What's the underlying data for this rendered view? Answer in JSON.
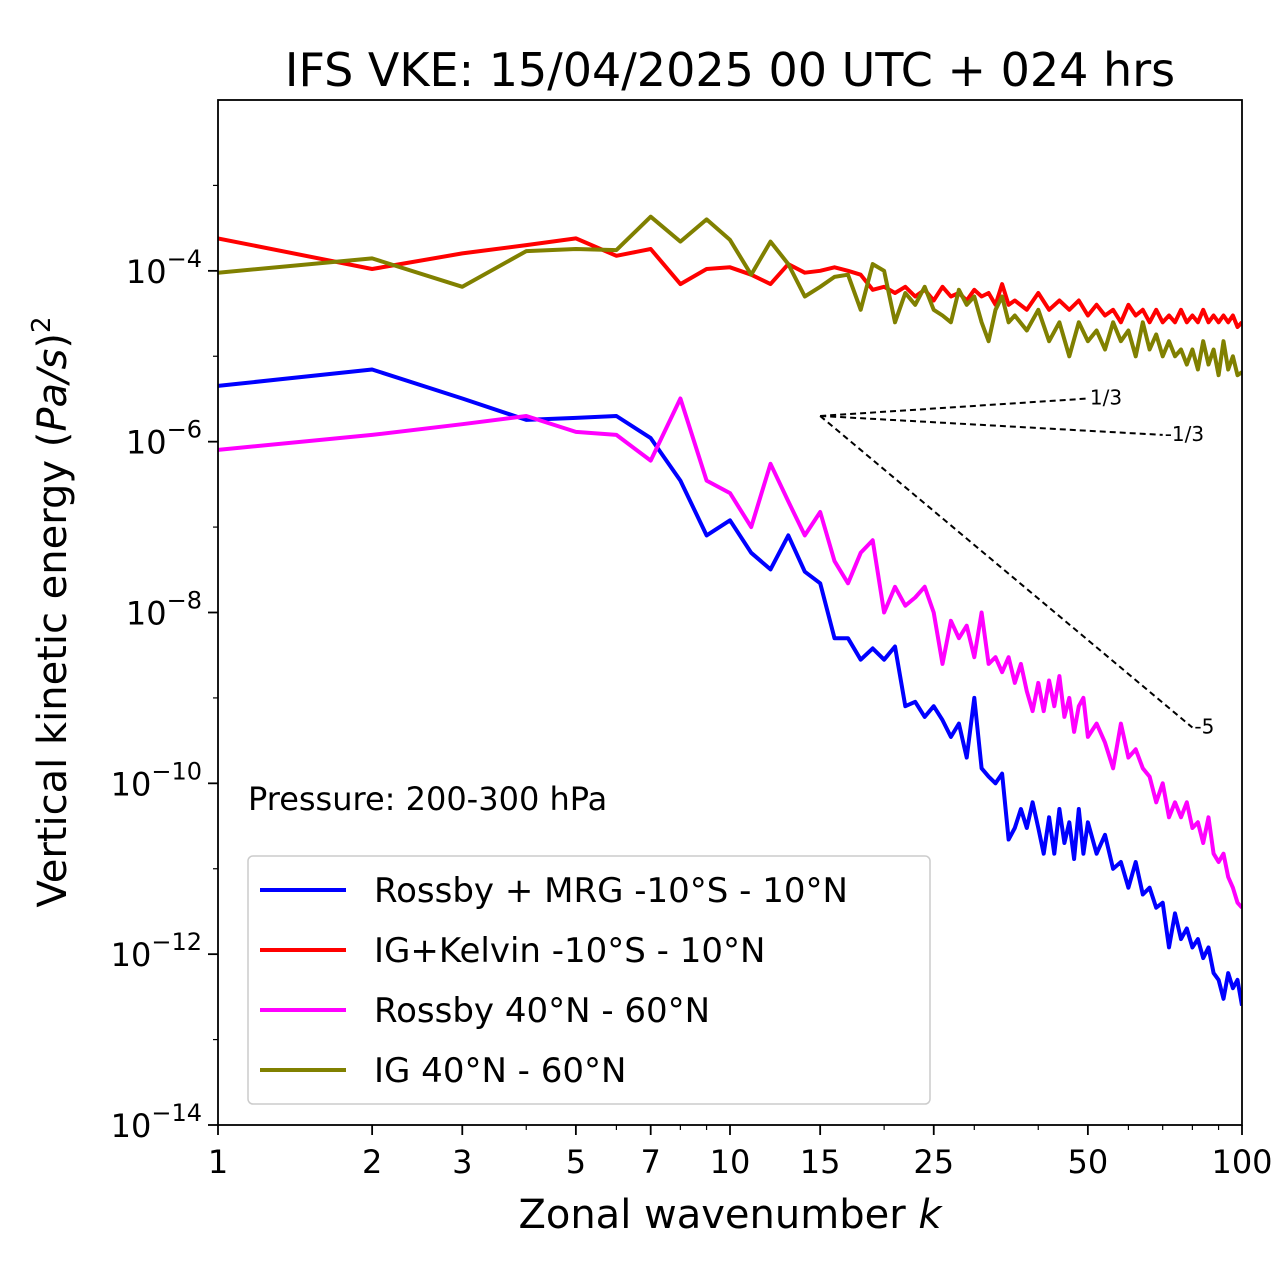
{
  "chart_data": {
    "type": "line",
    "title": "IFS VKE: 15/04/2025 00 UTC + 024 hrs",
    "xlabel": "Zonal wavenumber k",
    "xlabel_main": "Zonal wavenumber ",
    "xlabel_var": "k",
    "ylabel": "Vertical kinetic energy (Pa/s)^2",
    "ylabel_main": "Vertical kinetic energy (",
    "ylabel_var": "Pa/s",
    "ylabel_close": ")",
    "ylabel_exp": "2",
    "xscale": "log",
    "yscale": "log",
    "xlim": [
      1,
      100
    ],
    "ylim": [
      1e-14,
      0.01
    ],
    "x_ticks": [
      1,
      2,
      3,
      5,
      7,
      10,
      15,
      25,
      50,
      100
    ],
    "x_tick_labels": [
      "1",
      "2",
      "3",
      "5",
      "7",
      "10",
      "15",
      "25",
      "50",
      "100"
    ],
    "y_ticks": [
      {
        "value": 0.0001,
        "base": "10",
        "exp": "−4"
      },
      {
        "value": 1e-06,
        "base": "10",
        "exp": "−6"
      },
      {
        "value": 1e-08,
        "base": "10",
        "exp": "−8"
      },
      {
        "value": 1e-10,
        "base": "10",
        "exp": "−10"
      },
      {
        "value": 1e-12,
        "base": "10",
        "exp": "−12"
      },
      {
        "value": 1e-14,
        "base": "10",
        "exp": "−14"
      }
    ],
    "grid": false,
    "annotation": "Pressure: 200-300 hPa",
    "legend_placement": "lower-left",
    "series": [
      {
        "name": "Rossby + MRG -10°S - 10°N",
        "color": "#0000ff",
        "points": [
          [
            1,
            4.5e-06
          ],
          [
            2,
            7e-06
          ],
          [
            3,
            3.2e-06
          ],
          [
            4,
            1.8e-06
          ],
          [
            5,
            1.9e-06
          ],
          [
            6,
            2e-06
          ],
          [
            7,
            1.1e-06
          ],
          [
            8,
            3.5e-07
          ],
          [
            9,
            8e-08
          ],
          [
            10,
            1.2e-07
          ],
          [
            11,
            5e-08
          ],
          [
            12,
            3.2e-08
          ],
          [
            13,
            8e-08
          ],
          [
            14,
            3e-08
          ],
          [
            15,
            2.2e-08
          ],
          [
            16,
            5e-09
          ],
          [
            17,
            5e-09
          ],
          [
            18,
            2.8e-09
          ],
          [
            19,
            3.8e-09
          ],
          [
            20,
            2.8e-09
          ],
          [
            21,
            4e-09
          ],
          [
            22,
            8e-10
          ],
          [
            23,
            9e-10
          ],
          [
            24,
            6e-10
          ],
          [
            25,
            8e-10
          ],
          [
            26,
            5.5e-10
          ],
          [
            27,
            3.5e-10
          ],
          [
            28,
            5e-10
          ],
          [
            29,
            2e-10
          ],
          [
            30,
            1e-09
          ],
          [
            31,
            1.5e-10
          ],
          [
            32,
            1.2e-10
          ],
          [
            33,
            1e-10
          ],
          [
            34,
            1.3e-10
          ],
          [
            35,
            2.2e-11
          ],
          [
            36,
            3e-11
          ],
          [
            37,
            5e-11
          ],
          [
            38,
            3e-11
          ],
          [
            39,
            6e-11
          ],
          [
            40,
            3e-11
          ],
          [
            41,
            1.5e-11
          ],
          [
            42,
            4e-11
          ],
          [
            43,
            1.5e-11
          ],
          [
            44,
            5e-11
          ],
          [
            45,
            2e-11
          ],
          [
            46,
            3.5e-11
          ],
          [
            47,
            1.3e-11
          ],
          [
            48,
            5e-11
          ],
          [
            49,
            1.5e-11
          ],
          [
            50,
            3.5e-11
          ],
          [
            52,
            1.5e-11
          ],
          [
            54,
            2.5e-11
          ],
          [
            56,
            1e-11
          ],
          [
            58,
            1.2e-11
          ],
          [
            60,
            6e-12
          ],
          [
            62,
            1.2e-11
          ],
          [
            64,
            5e-12
          ],
          [
            66,
            6e-12
          ],
          [
            68,
            3.5e-12
          ],
          [
            70,
            4e-12
          ],
          [
            72,
            1.2e-12
          ],
          [
            74,
            3e-12
          ],
          [
            76,
            1.5e-12
          ],
          [
            78,
            2e-12
          ],
          [
            80,
            1.2e-12
          ],
          [
            82,
            1.5e-12
          ],
          [
            84,
            9e-13
          ],
          [
            86,
            1.2e-12
          ],
          [
            88,
            6e-13
          ],
          [
            90,
            5e-13
          ],
          [
            92,
            3e-13
          ],
          [
            94,
            6e-13
          ],
          [
            96,
            4e-13
          ],
          [
            98,
            5e-13
          ],
          [
            100,
            2.5e-13
          ]
        ]
      },
      {
        "name": "IG+Kelvin -10°S - 10°N",
        "color": "#ff0000",
        "points": [
          [
            1,
            0.00024
          ],
          [
            2,
            0.000105
          ],
          [
            3,
            0.00016
          ],
          [
            4,
            0.0002
          ],
          [
            5,
            0.00024
          ],
          [
            6,
            0.00015
          ],
          [
            7,
            0.00018
          ],
          [
            8,
            7e-05
          ],
          [
            9,
            0.000105
          ],
          [
            10,
            0.00011
          ],
          [
            11,
            9e-05
          ],
          [
            12,
            7e-05
          ],
          [
            13,
            0.00012
          ],
          [
            14,
            9.5e-05
          ],
          [
            15,
            0.0001
          ],
          [
            16,
            0.00011
          ],
          [
            17,
            0.0001
          ],
          [
            18,
            9e-05
          ],
          [
            19,
            6e-05
          ],
          [
            20,
            6.5e-05
          ],
          [
            21,
            5.5e-05
          ],
          [
            22,
            6.5e-05
          ],
          [
            23,
            5e-05
          ],
          [
            24,
            6e-05
          ],
          [
            25,
            4.5e-05
          ],
          [
            26,
            6.5e-05
          ],
          [
            27,
            5e-05
          ],
          [
            28,
            5.5e-05
          ],
          [
            29,
            4.5e-05
          ],
          [
            30,
            6e-05
          ],
          [
            31,
            5e-05
          ],
          [
            32,
            5.5e-05
          ],
          [
            33,
            4e-05
          ],
          [
            34,
            7e-05
          ],
          [
            35,
            4e-05
          ],
          [
            36,
            4.5e-05
          ],
          [
            38,
            3.5e-05
          ],
          [
            40,
            5.5e-05
          ],
          [
            42,
            3.5e-05
          ],
          [
            44,
            4.5e-05
          ],
          [
            46,
            3.5e-05
          ],
          [
            48,
            4.5e-05
          ],
          [
            50,
            3e-05
          ],
          [
            52,
            4e-05
          ],
          [
            54,
            3e-05
          ],
          [
            56,
            3.5e-05
          ],
          [
            58,
            2.5e-05
          ],
          [
            60,
            4e-05
          ],
          [
            62,
            3e-05
          ],
          [
            64,
            3.5e-05
          ],
          [
            66,
            2.5e-05
          ],
          [
            68,
            3.5e-05
          ],
          [
            70,
            2.5e-05
          ],
          [
            72,
            3e-05
          ],
          [
            74,
            2.5e-05
          ],
          [
            76,
            3.5e-05
          ],
          [
            78,
            2.5e-05
          ],
          [
            80,
            3e-05
          ],
          [
            82,
            2.5e-05
          ],
          [
            84,
            3.5e-05
          ],
          [
            86,
            2.5e-05
          ],
          [
            88,
            3e-05
          ],
          [
            90,
            2.5e-05
          ],
          [
            92,
            3e-05
          ],
          [
            94,
            2.5e-05
          ],
          [
            96,
            3e-05
          ],
          [
            98,
            2.2e-05
          ],
          [
            100,
            2.5e-05
          ]
        ]
      },
      {
        "name": "Rossby 40°N - 60°N",
        "color": "#ff00ff",
        "points": [
          [
            1,
            8e-07
          ],
          [
            2,
            1.2e-06
          ],
          [
            3,
            1.6e-06
          ],
          [
            4,
            2e-06
          ],
          [
            5,
            1.3e-06
          ],
          [
            6,
            1.2e-06
          ],
          [
            7,
            6e-07
          ],
          [
            8,
            3.2e-06
          ],
          [
            9,
            3.5e-07
          ],
          [
            10,
            2.5e-07
          ],
          [
            11,
            1e-07
          ],
          [
            12,
            5.5e-07
          ],
          [
            13,
            2e-07
          ],
          [
            14,
            8e-08
          ],
          [
            15,
            1.5e-07
          ],
          [
            16,
            4e-08
          ],
          [
            17,
            2.2e-08
          ],
          [
            18,
            5e-08
          ],
          [
            19,
            7e-08
          ],
          [
            20,
            1e-08
          ],
          [
            21,
            2e-08
          ],
          [
            22,
            1.2e-08
          ],
          [
            23,
            1.5e-08
          ],
          [
            24,
            2e-08
          ],
          [
            25,
            1e-08
          ],
          [
            26,
            2.5e-09
          ],
          [
            27,
            8e-09
          ],
          [
            28,
            5e-09
          ],
          [
            29,
            7e-09
          ],
          [
            30,
            3e-09
          ],
          [
            31,
            1e-08
          ],
          [
            32,
            2.5e-09
          ],
          [
            33,
            3e-09
          ],
          [
            34,
            2e-09
          ],
          [
            35,
            3e-09
          ],
          [
            36,
            1.5e-09
          ],
          [
            37,
            2.5e-09
          ],
          [
            38,
            1.2e-09
          ],
          [
            39,
            7e-10
          ],
          [
            40,
            1.5e-09
          ],
          [
            41,
            7e-10
          ],
          [
            42,
            1.6e-09
          ],
          [
            43,
            8e-10
          ],
          [
            44,
            1.8e-09
          ],
          [
            45,
            6e-10
          ],
          [
            46,
            1e-09
          ],
          [
            47,
            4e-10
          ],
          [
            48,
            8e-10
          ],
          [
            49,
            1e-09
          ],
          [
            50,
            3.5e-10
          ],
          [
            52,
            5e-10
          ],
          [
            54,
            3e-10
          ],
          [
            56,
            1.5e-10
          ],
          [
            58,
            5e-10
          ],
          [
            60,
            2e-10
          ],
          [
            62,
            2.5e-10
          ],
          [
            64,
            1.5e-10
          ],
          [
            66,
            1.2e-10
          ],
          [
            68,
            6e-11
          ],
          [
            70,
            1e-10
          ],
          [
            72,
            4e-11
          ],
          [
            74,
            6e-11
          ],
          [
            76,
            4e-11
          ],
          [
            78,
            6e-11
          ],
          [
            80,
            3e-11
          ],
          [
            82,
            3.5e-11
          ],
          [
            84,
            2e-11
          ],
          [
            86,
            4e-11
          ],
          [
            88,
            1.5e-11
          ],
          [
            90,
            1.2e-11
          ],
          [
            92,
            1.5e-11
          ],
          [
            94,
            8e-12
          ],
          [
            96,
            6e-12
          ],
          [
            98,
            4e-12
          ],
          [
            100,
            3.5e-12
          ]
        ]
      },
      {
        "name": "IG 40°N - 60°N",
        "color": "#808000",
        "points": [
          [
            1,
            9.5e-05
          ],
          [
            2,
            0.00014
          ],
          [
            3,
            6.5e-05
          ],
          [
            4,
            0.00017
          ],
          [
            5,
            0.00018
          ],
          [
            6,
            0.000175
          ],
          [
            7,
            0.00043
          ],
          [
            8,
            0.00022
          ],
          [
            9,
            0.0004
          ],
          [
            10,
            0.00023
          ],
          [
            11,
            9e-05
          ],
          [
            12,
            0.00022
          ],
          [
            13,
            0.00012
          ],
          [
            14,
            5e-05
          ],
          [
            15,
            6.5e-05
          ],
          [
            16,
            8.5e-05
          ],
          [
            17,
            9e-05
          ],
          [
            18,
            3.5e-05
          ],
          [
            19,
            0.00012
          ],
          [
            20,
            0.0001
          ],
          [
            21,
            2.5e-05
          ],
          [
            22,
            5.5e-05
          ],
          [
            23,
            4e-05
          ],
          [
            24,
            6.5e-05
          ],
          [
            25,
            3.5e-05
          ],
          [
            26,
            3e-05
          ],
          [
            27,
            2.5e-05
          ],
          [
            28,
            6e-05
          ],
          [
            29,
            4e-05
          ],
          [
            30,
            5e-05
          ],
          [
            31,
            2.5e-05
          ],
          [
            32,
            1.5e-05
          ],
          [
            33,
            3.5e-05
          ],
          [
            34,
            5e-05
          ],
          [
            35,
            2.5e-05
          ],
          [
            36,
            3e-05
          ],
          [
            38,
            2e-05
          ],
          [
            40,
            3.5e-05
          ],
          [
            42,
            1.5e-05
          ],
          [
            44,
            2.5e-05
          ],
          [
            46,
            1e-05
          ],
          [
            48,
            2.5e-05
          ],
          [
            50,
            1.5e-05
          ],
          [
            52,
            2e-05
          ],
          [
            54,
            1.2e-05
          ],
          [
            56,
            2.5e-05
          ],
          [
            58,
            1.5e-05
          ],
          [
            60,
            2e-05
          ],
          [
            62,
            1e-05
          ],
          [
            64,
            2.5e-05
          ],
          [
            66,
            1.2e-05
          ],
          [
            68,
            1.8e-05
          ],
          [
            70,
            1e-05
          ],
          [
            72,
            1.5e-05
          ],
          [
            74,
            1e-05
          ],
          [
            76,
            1.2e-05
          ],
          [
            78,
            8e-06
          ],
          [
            80,
            1.2e-05
          ],
          [
            82,
            7e-06
          ],
          [
            84,
            1.5e-05
          ],
          [
            86,
            8e-06
          ],
          [
            88,
            1.2e-05
          ],
          [
            90,
            6e-06
          ],
          [
            92,
            1.5e-05
          ],
          [
            94,
            7e-06
          ],
          [
            96,
            1e-05
          ],
          [
            98,
            6e-06
          ],
          [
            100,
            6.5e-06
          ]
        ]
      }
    ],
    "reference_slopes": [
      {
        "label": "1/3",
        "points": [
          [
            15,
            2e-06
          ],
          [
            50,
            3.2e-06
          ]
        ]
      },
      {
        "label": "-1/3",
        "points": [
          [
            15,
            2e-06
          ],
          [
            70,
            1.2e-06
          ]
        ]
      },
      {
        "label": "-5",
        "points": [
          [
            15,
            2e-06
          ],
          [
            80,
            4.5e-10
          ]
        ]
      }
    ]
  }
}
